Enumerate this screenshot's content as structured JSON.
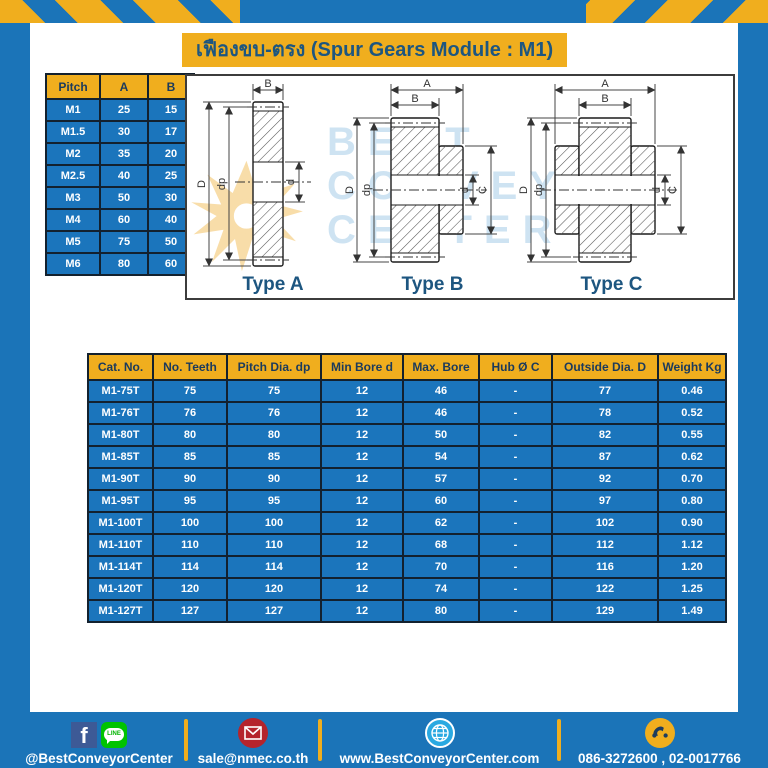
{
  "title": "เฟืองขบ-ตรง (Spur Gears Module : M1)",
  "colors": {
    "page_blue": "#1b74b8",
    "accent_yellow": "#f0ae1e",
    "cell_blue": "#1b75bc",
    "title_text": "#1d5680",
    "header_text": "#1b3a5c"
  },
  "pitch_table": {
    "headers": [
      "Pitch",
      "A",
      "B"
    ],
    "rows": [
      [
        "M1",
        "25",
        "15"
      ],
      [
        "M1.5",
        "30",
        "17"
      ],
      [
        "M2",
        "35",
        "20"
      ],
      [
        "M2.5",
        "40",
        "25"
      ],
      [
        "M3",
        "50",
        "30"
      ],
      [
        "M4",
        "60",
        "40"
      ],
      [
        "M5",
        "75",
        "50"
      ],
      [
        "M6",
        "80",
        "60"
      ]
    ]
  },
  "drawings": {
    "type_a": {
      "label": "Type A",
      "dim_width": "B",
      "dim_outer": "D",
      "dim_pitch": "dp",
      "dim_bore": "d"
    },
    "type_b": {
      "label": "Type B",
      "dim_total": "A",
      "dim_width": "B",
      "dim_outer": "D",
      "dim_pitch": "dp",
      "dim_bore": "d",
      "dim_hub": "C"
    },
    "type_c": {
      "label": "Type C",
      "dim_total": "A",
      "dim_width": "B",
      "dim_outer": "D",
      "dim_pitch": "dp",
      "dim_bore": "d",
      "dim_hub": "C"
    }
  },
  "watermark": {
    "line1": "BEST",
    "line2": "CONVEYOR",
    "line3": "CENTER"
  },
  "main_table": {
    "headers": [
      "Cat. No.",
      "No. Teeth",
      "Pitch Dia. dp",
      "Min Bore d",
      "Max. Bore",
      "Hub Ø C",
      "Outside Dia. D",
      "Weight Kg"
    ],
    "rows": [
      [
        "M1-75T",
        "75",
        "75",
        "12",
        "46",
        "-",
        "77",
        "0.46"
      ],
      [
        "M1-76T",
        "76",
        "76",
        "12",
        "46",
        "-",
        "78",
        "0.52"
      ],
      [
        "M1-80T",
        "80",
        "80",
        "12",
        "50",
        "-",
        "82",
        "0.55"
      ],
      [
        "M1-85T",
        "85",
        "85",
        "12",
        "54",
        "-",
        "87",
        "0.62"
      ],
      [
        "M1-90T",
        "90",
        "90",
        "12",
        "57",
        "-",
        "92",
        "0.70"
      ],
      [
        "M1-95T",
        "95",
        "95",
        "12",
        "60",
        "-",
        "97",
        "0.80"
      ],
      [
        "M1-100T",
        "100",
        "100",
        "12",
        "62",
        "-",
        "102",
        "0.90"
      ],
      [
        "M1-110T",
        "110",
        "110",
        "12",
        "68",
        "-",
        "112",
        "1.12"
      ],
      [
        "M1-114T",
        "114",
        "114",
        "12",
        "70",
        "-",
        "116",
        "1.20"
      ],
      [
        "M1-120T",
        "120",
        "120",
        "12",
        "74",
        "-",
        "122",
        "1.25"
      ],
      [
        "M1-127T",
        "127",
        "127",
        "12",
        "80",
        "-",
        "129",
        "1.49"
      ]
    ]
  },
  "footer": {
    "facebook_letter": "f",
    "line_text": "LINE",
    "social_label": "@BestConveyorCenter",
    "email_label": "sale@nmec.co.th",
    "web_label": "www.BestConveyorCenter.com",
    "phone_label": "086-3272600 , 02-0017766"
  }
}
